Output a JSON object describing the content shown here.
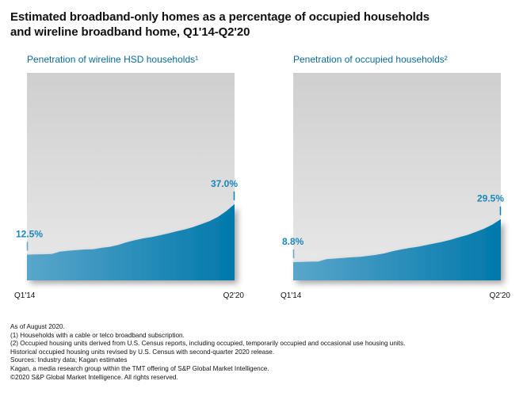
{
  "title_line1": "Estimated broadband-only homes as a percentage of occupied households",
  "title_line2": "and wireline broadband home, Q1'14-Q2'20",
  "colors": {
    "area": "#0a7fb0",
    "area_light": "#5aa8cc",
    "label": "#1a86bb",
    "subtitle": "#0a6a9c",
    "panel_top": "#cfcfcf",
    "panel_bottom": "#e8e8e8"
  },
  "chart_data": [
    {
      "type": "area",
      "title": "Penetration of wireline HSD households¹",
      "x_start_label": "Q1'14",
      "x_end_label": "Q2'20",
      "start_label": "12.5%",
      "end_label": "37.0%",
      "ylim": [
        0,
        40
      ],
      "x": [
        "Q1'14",
        "Q2'14",
        "Q3'14",
        "Q4'14",
        "Q1'15",
        "Q2'15",
        "Q3'15",
        "Q4'15",
        "Q1'16",
        "Q2'16",
        "Q3'16",
        "Q4'16",
        "Q1'17",
        "Q2'17",
        "Q3'17",
        "Q4'17",
        "Q1'18",
        "Q2'18",
        "Q3'18",
        "Q4'18",
        "Q1'19",
        "Q2'19",
        "Q3'19",
        "Q4'19",
        "Q1'20",
        "Q2'20"
      ],
      "values": [
        12.5,
        12.6,
        12.7,
        12.8,
        14.0,
        14.4,
        14.7,
        15.0,
        15.1,
        15.8,
        16.3,
        17.2,
        18.5,
        19.5,
        20.4,
        21.0,
        21.9,
        22.8,
        23.8,
        24.7,
        25.9,
        27.3,
        28.8,
        30.8,
        33.6,
        37.0
      ]
    },
    {
      "type": "area",
      "title": "Penetration of occupied households²",
      "x_start_label": "Q1'14",
      "x_end_label": "Q2'20",
      "start_label": "8.8%",
      "end_label": "29.5%",
      "ylim": [
        0,
        40
      ],
      "x": [
        "Q1'14",
        "Q2'14",
        "Q3'14",
        "Q4'14",
        "Q1'15",
        "Q2'15",
        "Q3'15",
        "Q4'15",
        "Q1'16",
        "Q2'16",
        "Q3'16",
        "Q4'16",
        "Q1'17",
        "Q2'17",
        "Q3'17",
        "Q4'17",
        "Q1'18",
        "Q2'18",
        "Q3'18",
        "Q4'18",
        "Q1'19",
        "Q2'19",
        "Q3'19",
        "Q4'19",
        "Q1'20",
        "Q2'20"
      ],
      "values": [
        8.8,
        8.9,
        9.0,
        9.1,
        10.2,
        10.5,
        10.8,
        11.1,
        11.3,
        11.8,
        12.3,
        13.0,
        14.1,
        14.9,
        15.6,
        16.2,
        17.0,
        17.8,
        18.6,
        19.6,
        20.8,
        21.9,
        23.4,
        24.9,
        26.9,
        29.5
      ]
    }
  ],
  "footnotes": [
    "As of August 2020.",
    "(1) Households with a cable or telco broadband subscription.",
    "(2) Occupied housing units derived from U.S. Census reports, including occupied, temporarily occupied and occasional use housing units.",
    "Historical occupied housing units revised by U.S. Census with second-quarter 2020 release.",
    "Sources: Industry data; Kagan estimates",
    "Kagan, a media research group within the TMT offering of S&P Global Market Intelligence.",
    "©2020 S&P Global Market Intelligence. All rights reserved."
  ]
}
